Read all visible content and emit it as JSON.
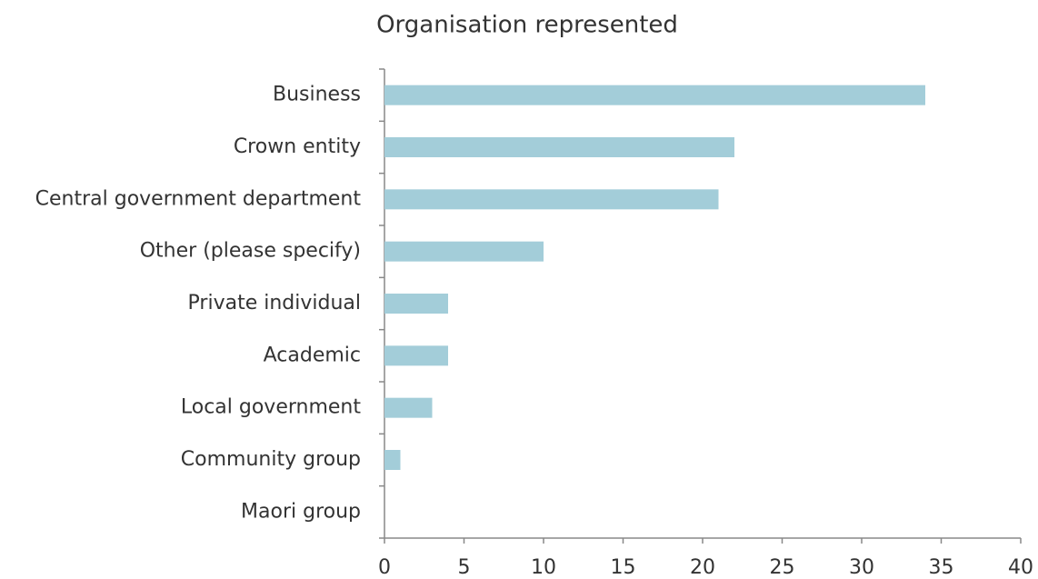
{
  "chart_data": {
    "type": "hbar",
    "title": "Organisation represented",
    "categories": [
      "Business",
      "Crown entity",
      "Central government department",
      "Other (please specify)",
      "Private individual",
      "Academic",
      "Local government",
      "Community group",
      "Maori group"
    ],
    "values": [
      34,
      22,
      21,
      10,
      4,
      4,
      3,
      1,
      0
    ],
    "color": "#a3cdd9",
    "xlim": [
      0,
      40
    ],
    "xticks": [
      0,
      5,
      10,
      15,
      20,
      25,
      30,
      35,
      40
    ],
    "grid": false
  }
}
